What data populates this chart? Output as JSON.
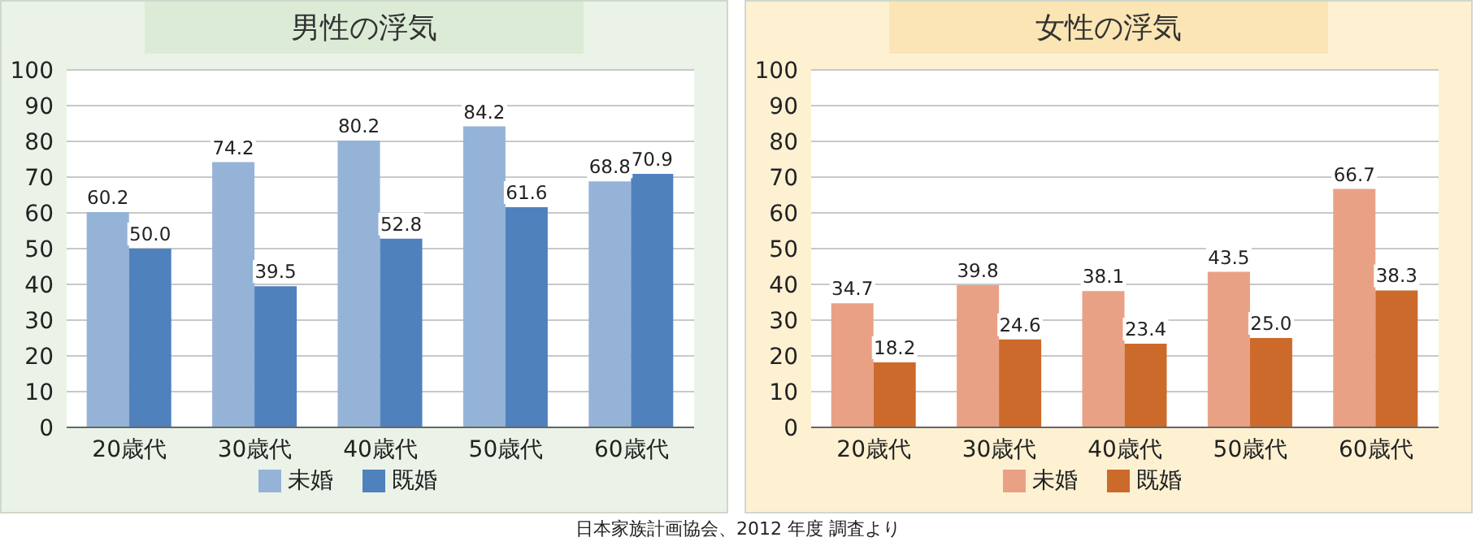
{
  "chart_data": [
    {
      "type": "bar",
      "title": "男性の浮気",
      "categories": [
        "20歳代",
        "30歳代",
        "40歳代",
        "50歳代",
        "60歳代"
      ],
      "series": [
        {
          "name": "未婚",
          "color": "#95b3d7",
          "values": [
            60.2,
            74.2,
            80.2,
            84.2,
            68.8
          ],
          "value_labels": [
            "60.2",
            "74.2",
            "80.2",
            "84.2",
            "68.8"
          ]
        },
        {
          "name": "既婚",
          "color": "#4f81bd",
          "values": [
            50.0,
            39.5,
            52.8,
            61.6,
            70.9
          ],
          "value_labels": [
            "50.0",
            "39.5",
            "52.8",
            "61.6",
            "70.9"
          ]
        }
      ],
      "ylim": [
        0,
        100
      ],
      "yticks": [
        0,
        10,
        20,
        30,
        40,
        50,
        60,
        70,
        80,
        90,
        100
      ],
      "grid": "y",
      "legend": "bottom",
      "annotations": [
        "日本家族計画協会、2012 年度 調査より"
      ]
    },
    {
      "type": "bar",
      "title": "女性の浮気",
      "categories": [
        "20歳代",
        "30歳代",
        "40歳代",
        "50歳代",
        "60歳代"
      ],
      "series": [
        {
          "name": "未婚",
          "color": "#e9a185",
          "values": [
            34.7,
            39.8,
            38.1,
            43.5,
            66.7
          ],
          "value_labels": [
            "34.7",
            "39.8",
            "38.1",
            "43.5",
            "66.7"
          ]
        },
        {
          "name": "既婚",
          "color": "#cc6a2b",
          "values": [
            18.2,
            24.6,
            23.4,
            25.0,
            38.3
          ],
          "value_labels": [
            "18.2",
            "24.6",
            "23.4",
            "25.0",
            "38.3"
          ]
        }
      ],
      "ylim": [
        0,
        100
      ],
      "yticks": [
        0,
        10,
        20,
        30,
        40,
        50,
        60,
        70,
        80,
        90,
        100
      ],
      "grid": "y",
      "legend": "bottom"
    }
  ]
}
